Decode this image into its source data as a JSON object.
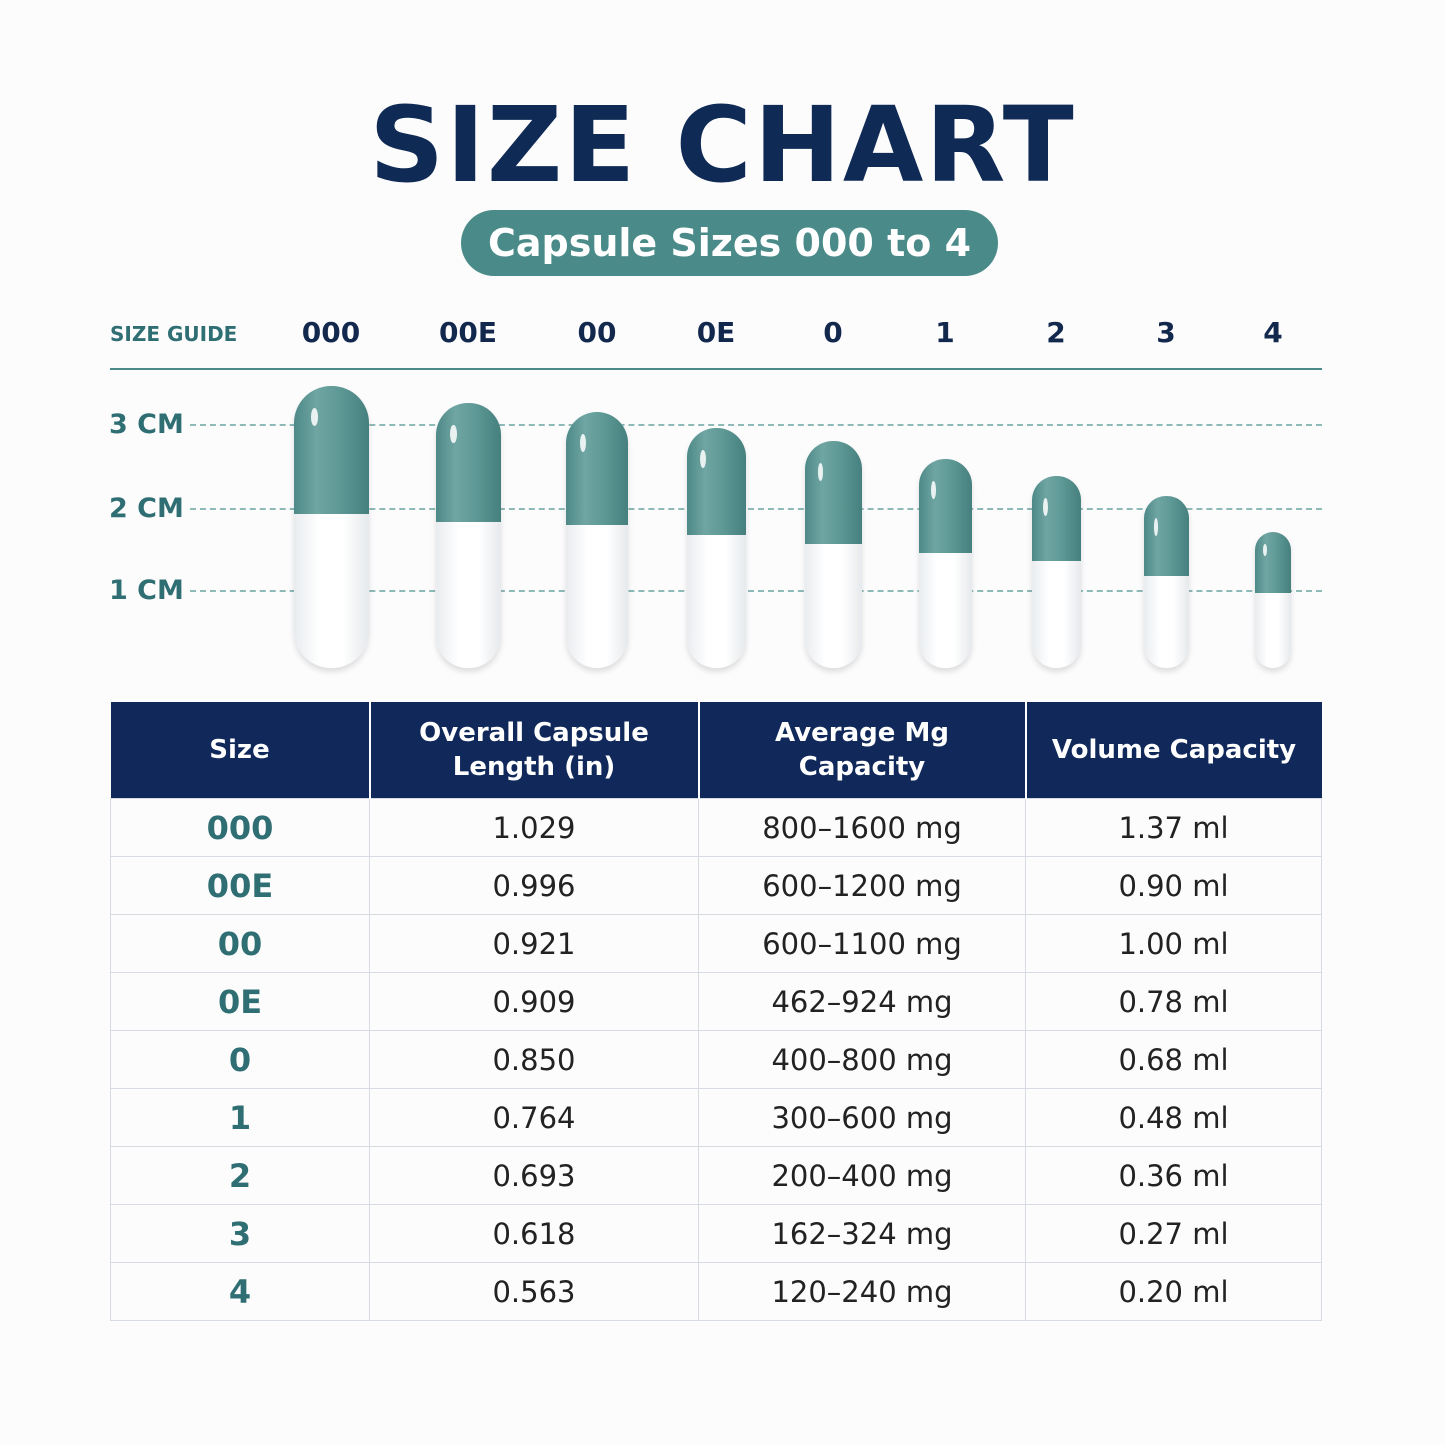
{
  "title": "SIZE CHART",
  "subtitle": "Capsule Sizes 000 to 4",
  "size_guide": {
    "label": "SIZE GUIDE",
    "sizes": [
      "000",
      "00E",
      "00",
      "0E",
      "0",
      "1",
      "2",
      "3",
      "4"
    ],
    "scale_labels": [
      "3 CM",
      "2 CM",
      "1 CM"
    ]
  },
  "colors": {
    "title": "#0f2a55",
    "accent": "#4a8b89",
    "header_bg": "#10295a",
    "capsule_cap": "#5f9996",
    "capsule_body": "#ffffff"
  },
  "table": {
    "headers": [
      "Size",
      "Overall Capsule Length (in)",
      "Average Mg Capacity",
      "Volume Capacity"
    ],
    "rows": [
      [
        "000",
        "1.029",
        "800–1600 mg",
        "1.37 ml"
      ],
      [
        "00E",
        "0.996",
        "600–1200 mg",
        "0.90 ml"
      ],
      [
        "00",
        "0.921",
        "600–1100 mg",
        "1.00 ml"
      ],
      [
        "0E",
        "0.909",
        "462–924 mg",
        "0.78 ml"
      ],
      [
        "0",
        "0.850",
        "400–800 mg",
        "0.68 ml"
      ],
      [
        "1",
        "0.764",
        "300–600 mg",
        "0.48 ml"
      ],
      [
        "2",
        "0.693",
        "200–400 mg",
        "0.36 ml"
      ],
      [
        "3",
        "0.618",
        "162–324 mg",
        "0.27 ml"
      ],
      [
        "4",
        "0.563",
        "120–240 mg",
        "0.20 ml"
      ]
    ]
  }
}
